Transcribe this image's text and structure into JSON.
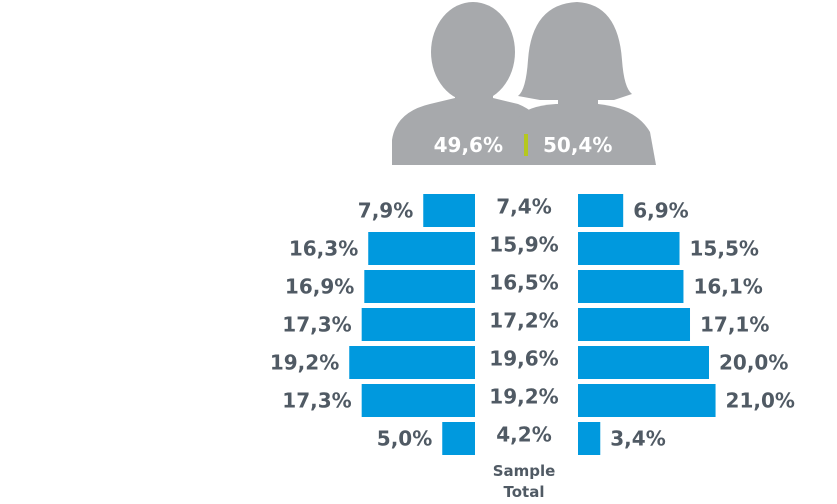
{
  "chart_data": {
    "type": "bar",
    "orientation": "horizontal-population-pyramid",
    "series": [
      {
        "values": [
          7.9,
          16.3,
          16.9,
          17.3,
          19.2,
          17.3,
          5.0
        ]
      },
      {
        "values": [
          6.9,
          15.5,
          16.1,
          17.1,
          20.0,
          21.0,
          3.4
        ]
      }
    ],
    "labels": {
      "left": [
        "7,9%",
        "16,3%",
        "16,9%",
        "17,3%",
        "19,2%",
        "17,3%",
        "5,0%"
      ],
      "total": [
        "7,4%",
        "15,9%",
        "16,5%",
        "17,2%",
        "19,6%",
        "19,2%",
        "4,2%"
      ],
      "right": [
        "6,9%",
        "15,5%",
        "16,1%",
        "17,1%",
        "20,0%",
        "21,0%",
        "3,4%"
      ]
    },
    "total_values": [
      7.4,
      15.9,
      16.5,
      17.2,
      19.6,
      19.2,
      4.2
    ],
    "gender_split": {
      "male": "49,6%",
      "female": "50,4%",
      "male_value": 49.6,
      "female_value": 50.4
    },
    "caption_line1": "Sample",
    "caption_line2": "Total",
    "colors": {
      "bar": "#0099de",
      "silhouette": "#a7a9ac",
      "divider": "#b5c81e",
      "text": "#505a64"
    }
  }
}
